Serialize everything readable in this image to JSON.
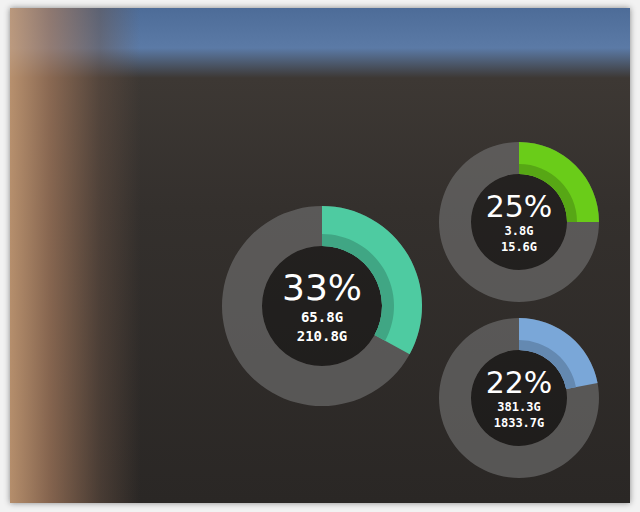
{
  "chart_data": [
    {
      "type": "gauge",
      "values": [
        33
      ],
      "value_labels": [
        "33%"
      ],
      "annotations": [
        "65.8G",
        "210.8G"
      ],
      "ylim": [
        0,
        100
      ],
      "color": "#4ecba1",
      "data_labels": true
    },
    {
      "type": "gauge",
      "values": [
        25
      ],
      "value_labels": [
        "25%"
      ],
      "annotations": [
        "3.8G",
        "15.6G"
      ],
      "ylim": [
        0,
        100
      ],
      "color": "#6acc19",
      "data_labels": true
    },
    {
      "type": "gauge",
      "values": [
        22
      ],
      "value_labels": [
        "22%"
      ],
      "annotations": [
        "381.3G",
        "1833.7G"
      ],
      "ylim": [
        0,
        100
      ],
      "color": "#7aa7d8",
      "data_labels": true
    }
  ]
}
